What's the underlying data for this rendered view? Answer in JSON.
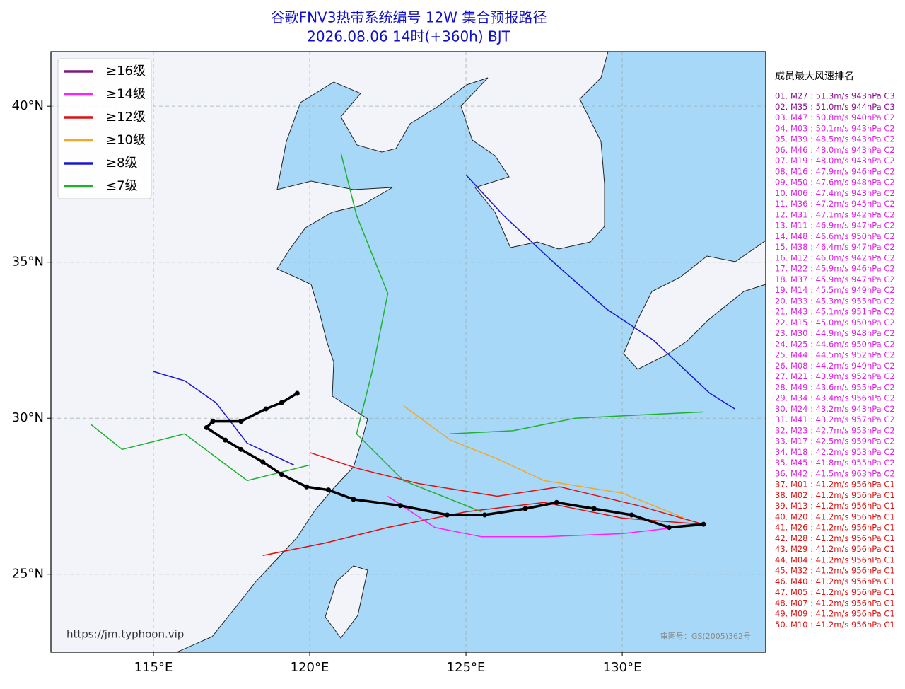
{
  "chart_data": {
    "type": "track-map",
    "title": "谷歌FNV3热带系统编号 12W 集合预报路径",
    "subtitle": "2026.08.06 14时(+360h) BJT",
    "xlim": [
      111.72,
      134.59
    ],
    "ylim": [
      22.5,
      41.75
    ],
    "xticks": [
      {
        "value": 115,
        "label": "115°E"
      },
      {
        "value": 120,
        "label": "120°E"
      },
      {
        "value": 125,
        "label": "125°E"
      },
      {
        "value": 130,
        "label": "130°E"
      }
    ],
    "yticks": [
      {
        "value": 25,
        "label": "25°N"
      },
      {
        "value": 30,
        "label": "30°N"
      },
      {
        "value": 35,
        "label": "35°N"
      },
      {
        "value": 40,
        "label": "40°N"
      }
    ],
    "grid": true,
    "legend": [
      {
        "name": "≥16级",
        "color": "#7b1b7b"
      },
      {
        "name": "≥14级",
        "color": "#ff20ff"
      },
      {
        "name": "≥12级",
        "color": "#e01010"
      },
      {
        "name": "≥10级",
        "color": "#f0a828"
      },
      {
        "name": "≥8级",
        "color": "#1818d0"
      },
      {
        "name": "≤7级",
        "color": "#20b030"
      }
    ],
    "mean_track": {
      "color": "#000000",
      "lon": [
        132.6,
        131.5,
        130.3,
        129.1,
        127.9,
        126.9,
        125.6,
        124.4,
        122.9,
        121.4,
        120.6,
        119.9,
        119.1,
        118.5,
        117.8,
        117.3,
        116.7,
        116.9,
        117.8,
        118.6,
        119.1,
        119.6
      ],
      "lat": [
        26.6,
        26.5,
        26.9,
        27.1,
        27.3,
        27.1,
        26.9,
        26.9,
        27.2,
        27.4,
        27.7,
        27.8,
        28.2,
        28.6,
        29.0,
        29.3,
        29.7,
        29.9,
        29.9,
        30.3,
        30.5,
        30.8
      ]
    },
    "tracks": [
      {
        "color": "#e01010",
        "lon": [
          132.6,
          130.0,
          127.5,
          125.0,
          122.5,
          120.5,
          118.5
        ],
        "lat": [
          26.6,
          26.8,
          27.3,
          27.0,
          26.5,
          26.0,
          25.6
        ]
      },
      {
        "color": "#ff20ff",
        "lon": [
          132.6,
          130.0,
          127.5,
          125.5,
          124.0,
          122.5
        ],
        "lat": [
          26.6,
          26.3,
          26.2,
          26.2,
          26.5,
          27.5
        ]
      },
      {
        "color": "#e01010",
        "lon": [
          132.6,
          130.5,
          128.0,
          126.0,
          123.5,
          121.5,
          120.0
        ],
        "lat": [
          26.6,
          27.2,
          27.8,
          27.5,
          27.9,
          28.4,
          28.9
        ]
      },
      {
        "color": "#f0a828",
        "lon": [
          132.0,
          130.0,
          127.5,
          126.0,
          124.5,
          123.0
        ],
        "lat": [
          26.8,
          27.6,
          28.0,
          28.7,
          29.3,
          30.4
        ]
      },
      {
        "color": "#20b030",
        "lon": [
          125.5,
          123.0,
          121.5,
          122.0,
          122.5,
          121.5,
          121.0
        ],
        "lat": [
          27.0,
          28.0,
          29.5,
          31.5,
          34.0,
          36.5,
          38.5
        ]
      },
      {
        "color": "#1818d0",
        "lon": [
          133.6,
          132.8,
          131.0,
          129.5,
          127.8,
          126.2,
          125.0
        ],
        "lat": [
          30.3,
          30.8,
          32.5,
          33.5,
          35.0,
          36.5,
          37.8
        ]
      },
      {
        "color": "#20b030",
        "lon": [
          120.0,
          118.0,
          116.0,
          114.0,
          113.0
        ],
        "lat": [
          28.5,
          28.0,
          29.5,
          29.0,
          29.8
        ]
      },
      {
        "color": "#20b030",
        "lon": [
          124.5,
          126.5,
          128.5,
          130.5,
          132.6
        ],
        "lat": [
          29.5,
          29.6,
          30.0,
          30.1,
          30.2
        ]
      },
      {
        "color": "#1818d0",
        "lon": [
          119.5,
          118.0,
          117.0,
          116.0,
          115.0
        ],
        "lat": [
          28.5,
          29.2,
          30.5,
          31.2,
          31.5
        ]
      }
    ],
    "url": "https://jm.typhoon.vip",
    "review_number": "审图号：GS(2005)362号",
    "ranking_title": "成员最大风速排名",
    "ranking_groups": [
      {
        "color": "#8b0a8b",
        "items": [
          "01. M27 : 51.3m/s 943hPa C3",
          "02. M35 : 51.0m/s 944hPa C3"
        ]
      },
      {
        "color": "#e020e0",
        "items": [
          "03. M47 : 50.8m/s 940hPa C2",
          "04. M03 : 50.1m/s 943hPa C2",
          "05. M39 : 48.5m/s 943hPa C2",
          "06. M46 : 48.0m/s 943hPa C2",
          "07. M19 : 48.0m/s 943hPa C2",
          "08. M16 : 47.9m/s 946hPa C2",
          "09. M50 : 47.6m/s 948hPa C2",
          "10. M06 : 47.4m/s 943hPa C2",
          "11. M36 : 47.2m/s 945hPa C2",
          "12. M31 : 47.1m/s 942hPa C2",
          "13. M11 : 46.9m/s 947hPa C2",
          "14. M48 : 46.6m/s 950hPa C2",
          "15. M38 : 46.4m/s 947hPa C2",
          "16. M12 : 46.0m/s 942hPa C2",
          "17. M22 : 45.9m/s 946hPa C2",
          "18. M37 : 45.9m/s 947hPa C2",
          "19. M14 : 45.5m/s 949hPa C2",
          "20. M33 : 45.3m/s 955hPa C2",
          "21. M43 : 45.1m/s 951hPa C2",
          "22. M15 : 45.0m/s 950hPa C2",
          "23. M30 : 44.9m/s 948hPa C2",
          "24. M25 : 44.6m/s 950hPa C2",
          "25. M44 : 44.5m/s 952hPa C2",
          "26. M08 : 44.2m/s 949hPa C2",
          "27. M21 : 43.9m/s 952hPa C2",
          "28. M49 : 43.6m/s 955hPa C2",
          "29. M34 : 43.4m/s 956hPa C2",
          "30. M24 : 43.2m/s 943hPa C2",
          "31. M41 : 43.2m/s 957hPa C2",
          "32. M23 : 42.7m/s 953hPa C2",
          "33. M17 : 42.5m/s 959hPa C2",
          "34. M18 : 42.2m/s 953hPa C2",
          "35. M45 : 41.8m/s 955hPa C2",
          "36. M42 : 41.5m/s 963hPa C2"
        ]
      },
      {
        "color": "#e01010",
        "items": [
          "37. M01 : 41.2m/s 956hPa C1",
          "38. M02 : 41.2m/s 956hPa C1",
          "39. M13 : 41.2m/s 956hPa C1",
          "40. M20 : 41.2m/s 956hPa C1",
          "41. M26 : 41.2m/s 956hPa C1",
          "42. M28 : 41.2m/s 956hPa C1",
          "43. M29 : 41.2m/s 956hPa C1",
          "44. M04 : 41.2m/s 956hPa C1",
          "45. M32 : 41.2m/s 956hPa C1",
          "46. M40 : 41.2m/s 956hPa C1",
          "47. M05 : 41.2m/s 956hPa C1",
          "48. M07 : 41.2m/s 956hPa C1",
          "49. M09 : 41.2m/s 956hPa C1",
          "50. M10 : 41.2m/s 956hPa C1"
        ]
      }
    ]
  }
}
